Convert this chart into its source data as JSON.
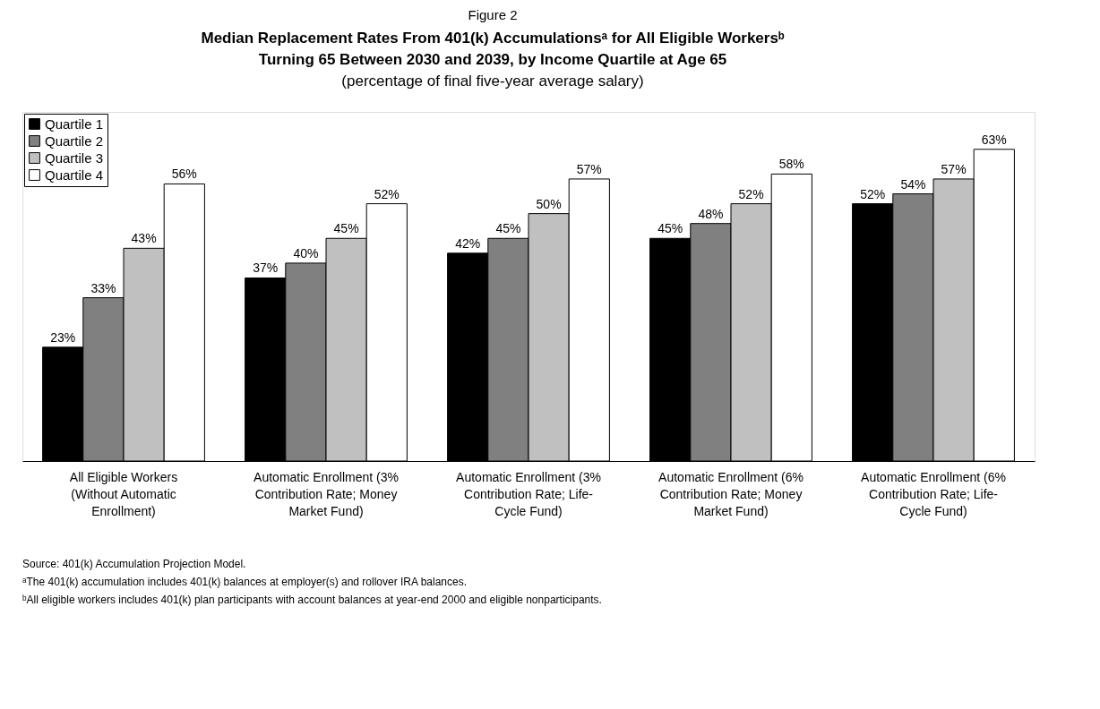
{
  "chart_data": {
    "type": "bar",
    "title": "Median Replacement Rates From 401(k) Accumulationsᵃ for All Eligible Workersᵇ Turning 65 Between 2030 and 2039, by Income Quartile at Age 65",
    "subtitle": "(percentage of final five-year average salary)",
    "categories": [
      "All Eligible Workers (Without Automatic Enrollment)",
      "Automatic Enrollment (3% Contribution Rate; Money Market Fund)",
      "Automatic Enrollment (3% Contribution Rate; Life-Cycle Fund)",
      "Automatic Enrollment (6% Contribution Rate; Money Market Fund)",
      "Automatic Enrollment (6% Contribution Rate; Life-Cycle Fund)"
    ],
    "series": [
      {
        "name": "Quartile 1",
        "color": "#000000",
        "values": [
          23,
          37,
          42,
          45,
          52
        ],
        "value_labels": [
          "23%",
          "37%",
          "42%",
          "45%",
          "52%"
        ]
      },
      {
        "name": "Quartile 2",
        "color": "#808080",
        "values": [
          33,
          40,
          45,
          48,
          54
        ],
        "value_labels": [
          "33%",
          "40%",
          "45%",
          "48%",
          "54%"
        ]
      },
      {
        "name": "Quartile 3",
        "color": "#c0c0c0",
        "values": [
          43,
          45,
          50,
          52,
          57
        ],
        "value_labels": [
          "43%",
          "45%",
          "50%",
          "52%",
          "57%"
        ]
      },
      {
        "name": "Quartile 4",
        "color": "#ffffff",
        "values": [
          56,
          52,
          57,
          58,
          63
        ],
        "value_labels": [
          "56%",
          "52%",
          "57%",
          "58%",
          "63%"
        ]
      }
    ],
    "legend": "top left",
    "annotations": [
      "Figure 2",
      "Source: 401(k) Accumulation Projection Model.",
      "ᵃThe 401(k) accumulation includes 401(k) balances at employer(s) and rollover IRA balances.",
      "ᵇAll eligible workers includes 401(k) plan participants with account balances at year-end 2000 and eligible nonparticipants."
    ]
  }
}
